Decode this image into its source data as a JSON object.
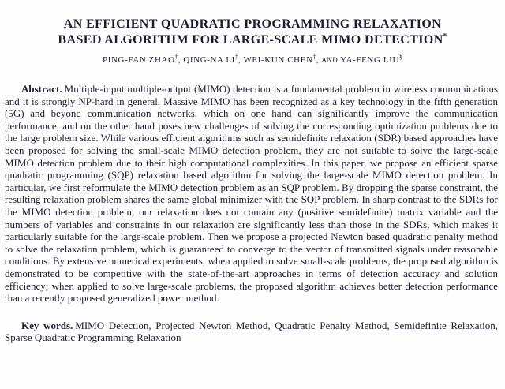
{
  "page": {
    "background": "#fdfdfe",
    "text_color": "#1d1d31"
  },
  "title": {
    "line1": "AN EFFICIENT QUADRATIC PROGRAMMING RELAXATION",
    "line2": "BASED ALGORITHM FOR LARGE-SCALE MIMO DETECTION",
    "footnote_mark": "*"
  },
  "authors": {
    "sep": ",",
    "conjunction": "AND",
    "list": [
      {
        "name": "PING-FAN ZHAO",
        "mark": "†"
      },
      {
        "name": "QING-NA LI",
        "mark": "‡"
      },
      {
        "name": "WEI-KUN CHEN",
        "mark": "‡"
      },
      {
        "name": "YA-FENG LIU",
        "mark": "§"
      }
    ]
  },
  "abstract": {
    "label": "Abstract.",
    "text": "Multiple-input multiple-output (MIMO) detection is a fundamental problem in wireless communications and it is strongly NP-hard in general. Massive MIMO has been recognized as a key technology in the fifth generation (5G) and beyond communication networks, which on one hand can significantly improve the communication performance, and on the other hand poses new challenges of solving the corresponding optimization problems due to the large problem size. While various efficient algorithms such as semidefinite relaxation (SDR) based approaches have been proposed for solving the small-scale MIMO detection problem, they are not suitable to solve the large-scale MIMO detection problem due to their high computational complexities. In this paper, we propose an efficient sparse quadratic programming (SQP) relaxation based algorithm for solving the large-scale MIMO detection problem. In particular, we first reformulate the MIMO detection problem as an SQP problem. By dropping the sparse constraint, the resulting relaxation problem shares the same global minimizer with the SQP problem. In sharp contrast to the SDRs for the MIMO detection problem, our relaxation does not contain any (positive semidefinite) matrix variable and the numbers of variables and constraints in our relaxation are significantly less than those in the SDRs, which makes it particularly suitable for the large-scale problem. Then we propose a projected Newton based quadratic penalty method to solve the relaxation problem, which is guaranteed to converge to the vector of transmitted signals under reasonable conditions. By extensive numerical experiments, when applied to solve small-scale problems, the proposed algorithm is demonstrated to be competitive with the state-of-the-art approaches in terms of detection accuracy and solution efficiency; when applied to solve large-scale problems, the proposed algorithm achieves better detection performance than a recently proposed generalized power method."
  },
  "keywords": {
    "label": "Key words.",
    "text": "MIMO Detection, Projected Newton Method, Quadratic Penalty Method, Semidefinite Relaxation, Sparse Quadratic Programming Relaxation"
  }
}
